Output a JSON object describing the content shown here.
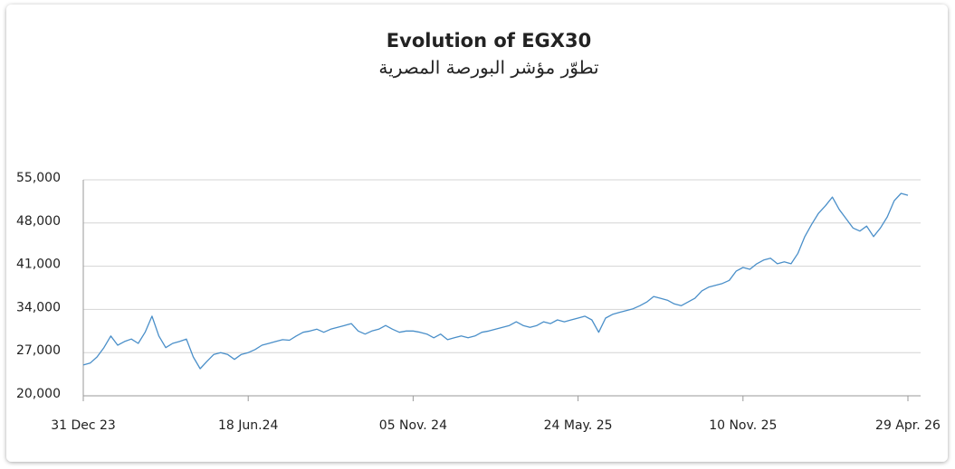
{
  "chart_data": {
    "type": "line",
    "title": "Evolution of EGX30",
    "subtitle": "تطوّر مؤشر البورصة المصرية",
    "categories": [
      "31 Dec 23",
      null,
      null,
      null,
      null,
      null,
      null,
      null,
      null,
      null,
      null,
      null,
      null,
      null,
      null,
      null,
      null,
      null,
      null,
      null,
      null,
      null,
      null,
      null,
      "18 Jun.24",
      null,
      null,
      null,
      null,
      null,
      null,
      null,
      null,
      null,
      null,
      null,
      null,
      null,
      null,
      null,
      null,
      null,
      null,
      null,
      null,
      null,
      null,
      null,
      "05 Nov. 24",
      null,
      null,
      null,
      null,
      null,
      null,
      null,
      null,
      null,
      null,
      null,
      null,
      null,
      null,
      null,
      null,
      null,
      null,
      null,
      null,
      null,
      null,
      null,
      "24 May. 25",
      null,
      null,
      null,
      null,
      null,
      null,
      null,
      null,
      null,
      null,
      null,
      null,
      null,
      null,
      null,
      null,
      null,
      null,
      null,
      null,
      null,
      null,
      null,
      "10 Nov. 25",
      null,
      null,
      null,
      null,
      null,
      null,
      null,
      null,
      null,
      null,
      null,
      null,
      null,
      null,
      null,
      null,
      null,
      null,
      null,
      null,
      null,
      null,
      null,
      "29 Apr. 26"
    ],
    "series": [
      {
        "color": "#4a8fc9",
        "values": [
          25000,
          25300,
          26300,
          27800,
          29700,
          28200,
          28800,
          29200,
          28500,
          30300,
          32900,
          29700,
          27800,
          28500,
          28800,
          29200,
          26300,
          24400,
          25600,
          26700,
          27000,
          26700,
          25900,
          26700,
          27000,
          27500,
          28200,
          28500,
          28800,
          29100,
          29000,
          29700,
          30300,
          30500,
          30800,
          30300,
          30800,
          31100,
          31400,
          31700,
          30500,
          30000,
          30500,
          30800,
          31400,
          30800,
          30300,
          30500,
          30500,
          30300,
          30000,
          29400,
          30000,
          29100,
          29400,
          29700,
          29400,
          29700,
          30300,
          30500,
          30800,
          31100,
          31400,
          32000,
          31400,
          31100,
          31400,
          32000,
          31700,
          32300,
          32000,
          32300,
          32600,
          32900,
          32300,
          30300,
          32600,
          33200,
          33500,
          33800,
          34100,
          34600,
          35200,
          36100,
          35800,
          35500,
          34900,
          34600,
          35200,
          35800,
          37000,
          37600,
          37900,
          38200,
          38700,
          40200,
          40800,
          40500,
          41400,
          42000,
          42300,
          41400,
          41700,
          41400,
          43100,
          45800,
          47800,
          49600,
          50800,
          52200,
          50200,
          48700,
          47200,
          46700,
          47500,
          45800,
          47200,
          49000,
          51600,
          52800,
          52500
        ]
      }
    ],
    "ylim": [
      20000,
      55000
    ],
    "yticks": [
      {
        "value": 20000,
        "label": "20,000"
      },
      {
        "value": 27000,
        "label": "27,000"
      },
      {
        "value": 34000,
        "label": "34,000"
      },
      {
        "value": 41000,
        "label": "41,000"
      },
      {
        "value": 48000,
        "label": "48,000"
      },
      {
        "value": 55000,
        "label": "55,000"
      }
    ],
    "grid": true
  }
}
